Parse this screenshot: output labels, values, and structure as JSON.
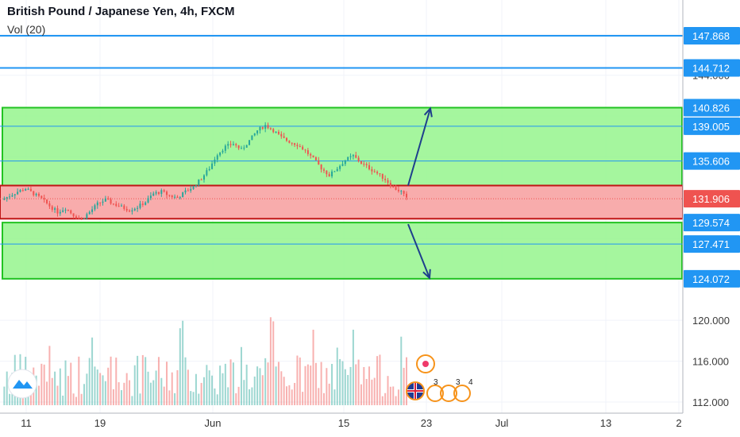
{
  "header": {
    "title": "British Pound / Japanese Yen, 4h, FXCM",
    "volume_label": "Vol (20)"
  },
  "colors": {
    "up": "#26a69a",
    "down": "#ef5350",
    "line_blue": "#2196f3",
    "arrow": "#1e3f8c",
    "green_zone": "#95f58d",
    "green_border": "#22c322",
    "red_zone": "#f7a3a3",
    "red_border": "#c01515",
    "tag_blue": "#2196f3",
    "tag_red": "#ef5350"
  },
  "chart_data": {
    "type": "candlestick",
    "ylim": [
      111.5,
      149.5
    ],
    "price_ticks": [
      112.0,
      116.0,
      120.0,
      144.0
    ],
    "date_ticks": [
      "11",
      "19",
      "Jun",
      "15",
      "23",
      "Jul",
      "13",
      "2"
    ],
    "price_tags": [
      {
        "value": 147.868,
        "label": "147.868",
        "kind": "line"
      },
      {
        "value": 144.712,
        "label": "144.712",
        "kind": "line"
      },
      {
        "value": 140.826,
        "label": "140.826",
        "kind": "level"
      },
      {
        "value": 139.005,
        "label": "139.005",
        "kind": "level"
      },
      {
        "value": 135.606,
        "label": "135.606",
        "kind": "level"
      },
      {
        "value": 131.906,
        "label": "131.906",
        "kind": "last"
      },
      {
        "value": 129.574,
        "label": "129.574",
        "kind": "level"
      },
      {
        "value": 127.471,
        "label": "127.471",
        "kind": "level"
      },
      {
        "value": 124.072,
        "label": "124.072",
        "kind": "level"
      }
    ],
    "zones": [
      {
        "kind": "green",
        "top": 140.826,
        "bottom": 133.2
      },
      {
        "kind": "red",
        "top": 133.2,
        "bottom": 129.95
      },
      {
        "kind": "green",
        "top": 129.574,
        "bottom": 124.072
      }
    ],
    "horizontal_lines": [
      147.868,
      144.712,
      139.005,
      135.606,
      127.471
    ],
    "last_price": 131.906,
    "arrows": [
      {
        "from": 133.2,
        "to": 140.826
      },
      {
        "from": 129.574,
        "to": 124.072
      }
    ],
    "close_path": [
      [
        0,
        131.8
      ],
      [
        3,
        132.2
      ],
      [
        6,
        132.6
      ],
      [
        9,
        132.9
      ],
      [
        12,
        132.4
      ],
      [
        15,
        131.9
      ],
      [
        18,
        131.2
      ],
      [
        21,
        130.6
      ],
      [
        24,
        131.0
      ],
      [
        27,
        130.3
      ],
      [
        30,
        129.9
      ],
      [
        33,
        130.6
      ],
      [
        36,
        131.4
      ],
      [
        39,
        131.8
      ],
      [
        42,
        131.4
      ],
      [
        45,
        131.1
      ],
      [
        48,
        130.8
      ],
      [
        51,
        131.1
      ],
      [
        54,
        131.6
      ],
      [
        57,
        132.4
      ],
      [
        60,
        132.6
      ],
      [
        63,
        132.2
      ],
      [
        66,
        132.0
      ],
      [
        69,
        132.6
      ],
      [
        72,
        133.1
      ],
      [
        75,
        133.9
      ],
      [
        78,
        134.9
      ],
      [
        81,
        136.3
      ],
      [
        84,
        137.0
      ],
      [
        87,
        137.3
      ],
      [
        90,
        136.7
      ],
      [
        93,
        137.6
      ],
      [
        96,
        138.6
      ],
      [
        99,
        139.1
      ],
      [
        102,
        138.6
      ],
      [
        105,
        137.9
      ],
      [
        108,
        137.5
      ],
      [
        111,
        137.2
      ],
      [
        114,
        136.6
      ],
      [
        117,
        135.8
      ],
      [
        120,
        134.9
      ],
      [
        123,
        134.2
      ],
      [
        126,
        134.9
      ],
      [
        129,
        135.7
      ],
      [
        132,
        136.1
      ],
      [
        135,
        135.4
      ],
      [
        138,
        134.9
      ],
      [
        141,
        134.4
      ],
      [
        144,
        133.8
      ],
      [
        147,
        133.0
      ],
      [
        150,
        132.6
      ],
      [
        152,
        131.9
      ]
    ],
    "volume_max": 20
  }
}
